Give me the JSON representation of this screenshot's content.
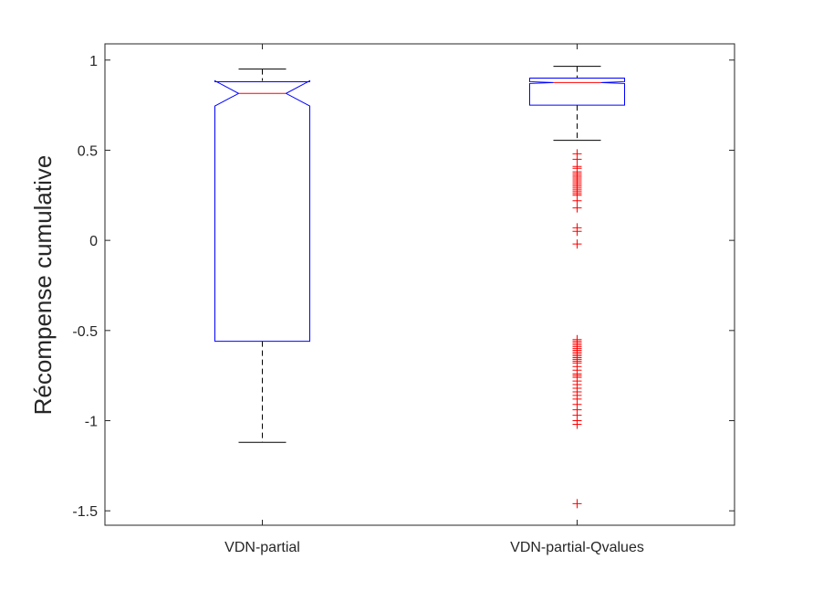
{
  "chart_data": {
    "type": "boxplot",
    "title": "",
    "xlabel": "",
    "ylabel": "Récompense cumulative",
    "ylim": [
      -1.58,
      1.09
    ],
    "yticks": [
      {
        "value": 1,
        "label": "1"
      },
      {
        "value": 0.5,
        "label": "0.5"
      },
      {
        "value": 0,
        "label": "0"
      },
      {
        "value": -0.5,
        "label": "-0.5"
      },
      {
        "value": -1,
        "label": "-1"
      },
      {
        "value": -1.5,
        "label": "-1.5"
      }
    ],
    "categories": [
      "VDN-partial",
      "VDN-partial-Qvalues"
    ],
    "grid": false,
    "notched": true,
    "colors": {
      "box": "#0000ff",
      "median": "#ff0000",
      "whisker": "#000000",
      "outlier": "#ff0000",
      "axis": "#262626"
    },
    "boxes": [
      {
        "category": "VDN-partial",
        "q1": -0.56,
        "median": 0.815,
        "q3": 0.88,
        "notch_low": 0.745,
        "notch_high": 0.885,
        "whisker_low": -1.12,
        "whisker_high": 0.95,
        "outliers": []
      },
      {
        "category": "VDN-partial-Qvalues",
        "q1": 0.75,
        "median": 0.875,
        "q3": 0.9,
        "notch_low": 0.87,
        "notch_high": 0.88,
        "whisker_low": 0.555,
        "whisker_high": 0.965,
        "outliers": [
          0.48,
          0.45,
          0.41,
          0.4,
          0.38,
          0.37,
          0.36,
          0.35,
          0.34,
          0.33,
          0.32,
          0.31,
          0.3,
          0.29,
          0.28,
          0.27,
          0.26,
          0.25,
          0.22,
          0.18,
          0.07,
          0.05,
          -0.02,
          -0.55,
          -0.56,
          -0.57,
          -0.58,
          -0.59,
          -0.6,
          -0.61,
          -0.62,
          -0.63,
          -0.64,
          -0.65,
          -0.66,
          -0.67,
          -0.68,
          -0.7,
          -0.72,
          -0.74,
          -0.75,
          -0.76,
          -0.78,
          -0.8,
          -0.82,
          -0.84,
          -0.86,
          -0.88,
          -0.91,
          -0.94,
          -0.97,
          -1.0,
          -1.02,
          -1.46
        ]
      }
    ]
  }
}
